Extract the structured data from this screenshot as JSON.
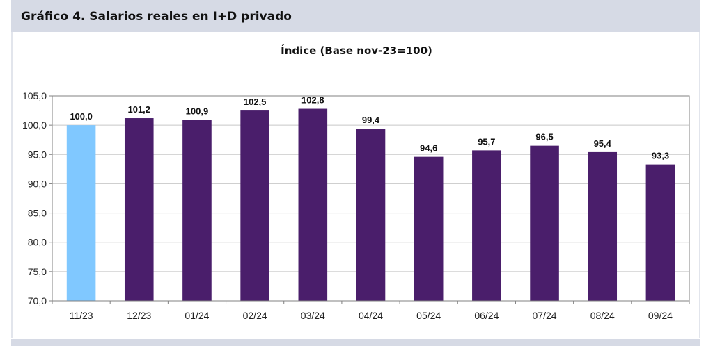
{
  "header": {
    "title": "Gráfico 4. Salarios reales en I+D privado"
  },
  "chart_data": {
    "type": "bar",
    "title": "Índice (Base nov-23=100)",
    "xlabel": "",
    "ylabel": "",
    "categories": [
      "11/23",
      "12/23",
      "01/24",
      "02/24",
      "03/24",
      "04/24",
      "05/24",
      "06/24",
      "07/24",
      "08/24",
      "09/24"
    ],
    "values": [
      100.0,
      101.2,
      100.9,
      102.5,
      102.8,
      99.4,
      94.6,
      95.7,
      96.5,
      95.4,
      93.3
    ],
    "data_labels": [
      "100,0",
      "101,2",
      "100,9",
      "102,5",
      "102,8",
      "99,4",
      "94,6",
      "95,7",
      "96,5",
      "95,4",
      "93,3"
    ],
    "ylim": [
      70,
      105
    ],
    "yticks": [
      70,
      75,
      80,
      85,
      90,
      95,
      100,
      105
    ],
    "ytick_labels": [
      "70,0",
      "75,0",
      "80,0",
      "85,0",
      "90,0",
      "95,0",
      "100,0",
      "105,0"
    ],
    "grid": true,
    "legend": "none",
    "colors": {
      "base": "#80c8ff",
      "bars": "#4a1e6b",
      "grid": "#c8c8c8",
      "axis": "#808080"
    },
    "highlight_index": 0
  }
}
